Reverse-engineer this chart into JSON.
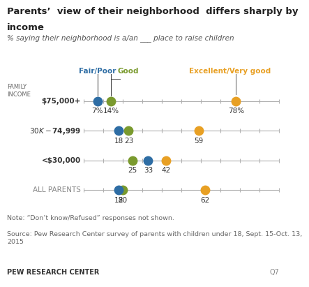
{
  "title_line1": "Parents’  view of their neighborhood  differs sharply by",
  "title_line2": "income",
  "subtitle": "% saying their neighborhood is a/an ___ place to raise children",
  "family_income_label": "FAMILY\nINCOME",
  "categories": [
    "$75,000+",
    "$30K-$74,999",
    "<$30,000",
    "ALL PARENTS"
  ],
  "data": {
    "$75,000+": {
      "fair_poor": 7,
      "good": 14,
      "excellent": 78
    },
    "$30K-$74,999": {
      "fair_poor": 18,
      "good": 23,
      "excellent": 59
    },
    "<$30,000": {
      "fair_poor": 33,
      "good": 25,
      "excellent": 42
    },
    "ALL PARENTS": {
      "fair_poor": 18,
      "good": 20,
      "excellent": 62
    }
  },
  "label_fmt": {
    "$75,000+": {
      "fair_poor": "7%",
      "good": "14%",
      "excellent": "78%"
    },
    "$30K-$74,999": {
      "fair_poor": "18",
      "good": "23",
      "excellent": "59"
    },
    "<$30,000": {
      "fair_poor": "33",
      "good": "25",
      "excellent": "42"
    },
    "ALL PARENTS": {
      "fair_poor": "18",
      "good": "20",
      "excellent": "62"
    }
  },
  "colors": {
    "fair_poor": "#2e6da4",
    "good": "#7a9a2e",
    "excellent": "#e8a024"
  },
  "xmin": 0,
  "xmax": 100,
  "xticks": [
    0,
    10,
    20,
    30,
    40,
    50,
    60,
    70,
    80,
    90,
    100
  ],
  "note": "Note: “Don’t know/Refused” responses not shown.",
  "source": "Source: Pew Research Center survey of parents with children under 18, Sept. 15-Oct. 13,\n2015",
  "footer": "PEW RESEARCH CENTER",
  "footer_right": "Q7",
  "dot_size": 100,
  "background_color": "#ffffff"
}
